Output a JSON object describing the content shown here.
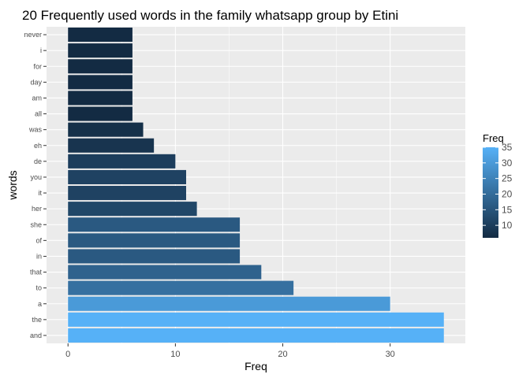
{
  "chart_data": {
    "type": "bar",
    "orientation": "horizontal",
    "title": "20 Frequently used words in the family whatsapp group by Etini",
    "xlabel": "Freq",
    "ylabel": "words",
    "categories": [
      "and",
      "the",
      "a",
      "to",
      "that",
      "in",
      "of",
      "she",
      "her",
      "it",
      "you",
      "de",
      "eh",
      "was",
      "all",
      "am",
      "day",
      "for",
      "i",
      "never"
    ],
    "values": [
      35,
      35,
      30,
      21,
      18,
      16,
      16,
      16,
      12,
      11,
      11,
      10,
      8,
      7,
      6,
      6,
      6,
      6,
      6,
      6
    ],
    "xlim": [
      -2,
      37
    ],
    "xticks": [
      0,
      10,
      20,
      30
    ],
    "xtick_labels": [
      "0",
      "10",
      "20",
      "30"
    ],
    "grid": true,
    "background": "#ebebeb",
    "color_scale": {
      "low_color": "#132b43",
      "high_color": "#56b1f7",
      "min": 6,
      "max": 35
    },
    "legend": {
      "title": "Freq",
      "position": "right",
      "ticks": [
        10,
        15,
        20,
        25,
        30,
        35
      ],
      "tick_labels": [
        "10",
        "15",
        "20",
        "25",
        "30",
        "35"
      ]
    }
  }
}
